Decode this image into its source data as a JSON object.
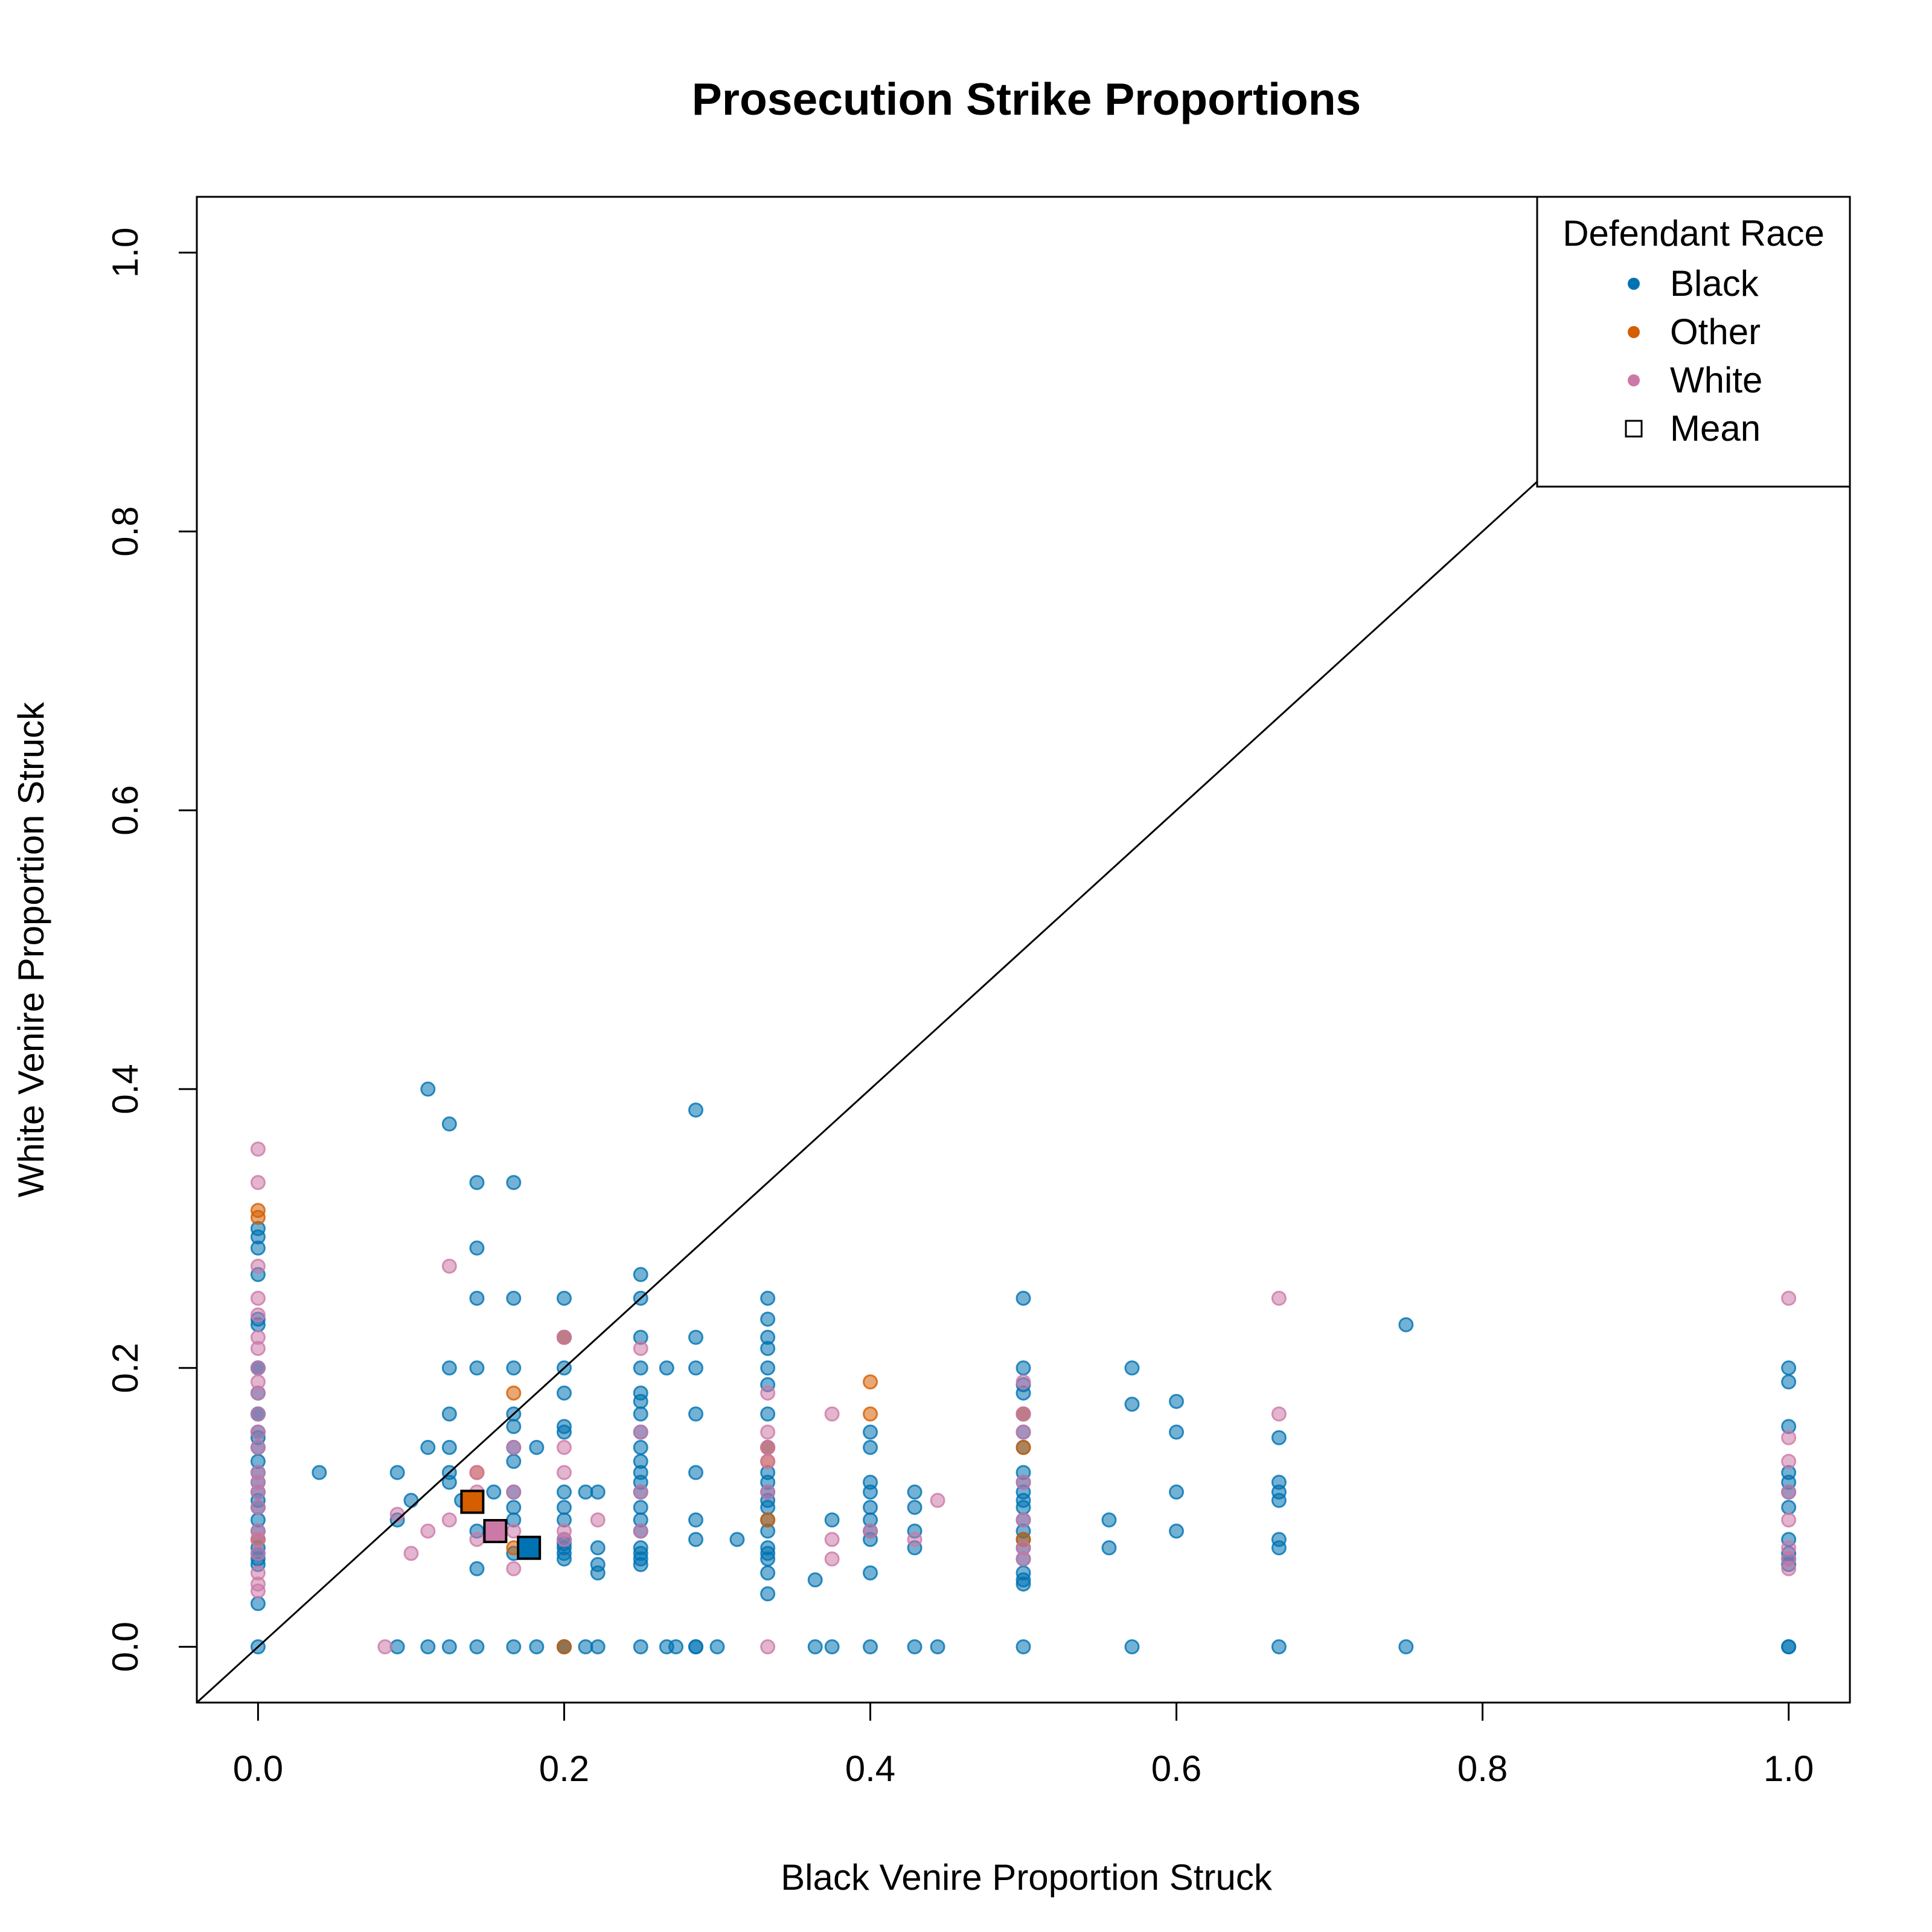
{
  "chart_data": {
    "type": "scatter",
    "title": "Prosecution Strike Proportions",
    "xlabel": "Black Venire Proportion Struck",
    "ylabel": "White Venire Proportion Struck",
    "xlim": [
      -0.04,
      1.04
    ],
    "ylim": [
      -0.04,
      1.04
    ],
    "xticks": [
      "0.0",
      "0.2",
      "0.4",
      "0.6",
      "0.8",
      "1.0"
    ],
    "yticks": [
      "0.0",
      "0.2",
      "0.4",
      "0.6",
      "0.8",
      "1.0"
    ],
    "reference_line": "y = x",
    "legend": {
      "title": "Defendant Race",
      "placement": "top-right",
      "entries": [
        "Black",
        "Other",
        "White",
        "Mean"
      ]
    },
    "colors": {
      "Black": "#0072B2",
      "Other": "#D55E00",
      "White": "#CC79A7"
    },
    "series": [
      {
        "name": "Black",
        "x": [
          0,
          0,
          0,
          0,
          0,
          0,
          0,
          0,
          0,
          0,
          0,
          0,
          0,
          0,
          0,
          0,
          0,
          0,
          0,
          0,
          0,
          0,
          0,
          0,
          0,
          0,
          0,
          0,
          0,
          0.04,
          0.091,
          0.091,
          0.091,
          0.1,
          0.111,
          0.111,
          0.111,
          0.125,
          0.125,
          0.125,
          0.125,
          0.125,
          0.125,
          0.125,
          0.133,
          0.143,
          0.143,
          0.143,
          0.143,
          0.143,
          0.143,
          0.143,
          0.154,
          0.167,
          0.167,
          0.167,
          0.167,
          0.167,
          0.167,
          0.167,
          0.167,
          0.167,
          0.167,
          0.167,
          0.167,
          0.182,
          0.182,
          0.2,
          0.2,
          0.2,
          0.2,
          0.2,
          0.2,
          0.2,
          0.2,
          0.2,
          0.2,
          0.2,
          0.2,
          0.2,
          0.2,
          0.2,
          0.2,
          0.214,
          0.214,
          0.222,
          0.222,
          0.222,
          0.222,
          0.222,
          0.25,
          0.25,
          0.25,
          0.25,
          0.25,
          0.25,
          0.25,
          0.25,
          0.25,
          0.25,
          0.25,
          0.25,
          0.25,
          0.25,
          0.25,
          0.25,
          0.25,
          0.25,
          0.25,
          0.25,
          0.25,
          0.267,
          0.267,
          0.273,
          0.286,
          0.286,
          0.286,
          0.286,
          0.286,
          0.286,
          0.286,
          0.286,
          0.286,
          0.3,
          0.313,
          0.333,
          0.333,
          0.333,
          0.333,
          0.333,
          0.333,
          0.333,
          0.333,
          0.333,
          0.333,
          0.333,
          0.333,
          0.333,
          0.333,
          0.333,
          0.333,
          0.333,
          0.333,
          0.333,
          0.333,
          0.364,
          0.364,
          0.375,
          0.375,
          0.4,
          0.4,
          0.4,
          0.4,
          0.4,
          0.4,
          0.4,
          0.4,
          0.4,
          0.4,
          0.429,
          0.429,
          0.429,
          0.429,
          0.429,
          0.444,
          0.5,
          0.5,
          0.5,
          0.5,
          0.5,
          0.5,
          0.5,
          0.5,
          0.5,
          0.5,
          0.5,
          0.5,
          0.5,
          0.5,
          0.5,
          0.5,
          0.5,
          0.5,
          0.5,
          0.5,
          0.5,
          0.556,
          0.556,
          0.571,
          0.571,
          0.571,
          0.6,
          0.6,
          0.6,
          0.6,
          0.667,
          0.667,
          0.667,
          0.667,
          0.667,
          0.667,
          0.667,
          0.75,
          0.75,
          1,
          1,
          1,
          1,
          1,
          1,
          1,
          1,
          1,
          1,
          1,
          1,
          1
        ],
        "y": [
          0.3,
          0.294,
          0.286,
          0.267,
          0.235,
          0.231,
          0.2,
          0.2,
          0.182,
          0.167,
          0.167,
          0.154,
          0.15,
          0.143,
          0.133,
          0.125,
          0.118,
          0.111,
          0.105,
          0.1,
          0.091,
          0.083,
          0.077,
          0.071,
          0.067,
          0.063,
          0.059,
          0.031,
          0,
          0.125,
          0.125,
          0.091,
          0,
          0.105,
          0.4,
          0.143,
          0,
          0.375,
          0.2,
          0.167,
          0.143,
          0.125,
          0.118,
          0,
          0.105,
          0.333,
          0.286,
          0.25,
          0.2,
          0.083,
          0.056,
          0,
          0.111,
          0.333,
          0.25,
          0.2,
          0.167,
          0.158,
          0.143,
          0.133,
          0.111,
          0.1,
          0.091,
          0.067,
          0,
          0.143,
          0,
          0.25,
          0.222,
          0.2,
          0.182,
          0.158,
          0.154,
          0.111,
          0.1,
          0.091,
          0.077,
          0.074,
          0.071,
          0.067,
          0.063,
          0,
          0,
          0.111,
          0,
          0.111,
          0.071,
          0.059,
          0.053,
          0,
          0.267,
          0.25,
          0.222,
          0.2,
          0.182,
          0.176,
          0.167,
          0.154,
          0.143,
          0.133,
          0.125,
          0.118,
          0.111,
          0.1,
          0.091,
          0.083,
          0.071,
          0.067,
          0.063,
          0.059,
          0,
          0.2,
          0,
          0,
          0.385,
          0.222,
          0.2,
          0.167,
          0.125,
          0.091,
          0.077,
          0,
          0,
          0,
          0.077,
          0.25,
          0.235,
          0.222,
          0.214,
          0.2,
          0.188,
          0.167,
          0.143,
          0.125,
          0.118,
          0.111,
          0.105,
          0.1,
          0.091,
          0.083,
          0.071,
          0.067,
          0.063,
          0.053,
          0.038,
          0.048,
          0,
          0.091,
          0,
          0.154,
          0.143,
          0.118,
          0.111,
          0.1,
          0.091,
          0.083,
          0.077,
          0.053,
          0,
          0.111,
          0.1,
          0.083,
          0.071,
          0,
          0,
          0.25,
          0.2,
          0.188,
          0.182,
          0.167,
          0.154,
          0.143,
          0.125,
          0.118,
          0.111,
          0.105,
          0.1,
          0.091,
          0.083,
          0.077,
          0.071,
          0.063,
          0.053,
          0.048,
          0.045,
          0,
          0.091,
          0.071,
          0.2,
          0.174,
          0,
          0.176,
          0.154,
          0.111,
          0.083,
          0.15,
          0.118,
          0.111,
          0.105,
          0.077,
          0.071,
          0,
          0.231,
          0,
          0.2,
          0.19,
          0.158,
          0.125,
          0.118,
          0.111,
          0.1,
          0.077,
          0.067,
          0.063,
          0.059,
          0,
          0
        ]
      },
      {
        "name": "Other",
        "x": [
          0,
          0,
          0,
          0.143,
          0.167,
          0.167,
          0.2,
          0.2,
          0.333,
          0.333,
          0.333,
          0.4,
          0.4,
          0.5,
          0.5,
          0.5
        ],
        "y": [
          0.313,
          0.308,
          0.077,
          0.125,
          0.182,
          0.071,
          0,
          0.222,
          0.143,
          0.133,
          0.091,
          0.19,
          0.167,
          0.167,
          0.143,
          0.077
        ]
      },
      {
        "name": "White",
        "x": [
          0,
          0,
          0,
          0,
          0,
          0,
          0,
          0,
          0,
          0,
          0,
          0,
          0,
          0,
          0,
          0,
          0,
          0,
          0,
          0,
          0,
          0,
          0,
          0.083,
          0.091,
          0.1,
          0.111,
          0.125,
          0.125,
          0.143,
          0.143,
          0.143,
          0.167,
          0.167,
          0.167,
          0.167,
          0.2,
          0.2,
          0.2,
          0.2,
          0.2,
          0.222,
          0.25,
          0.25,
          0.25,
          0.25,
          0.333,
          0.333,
          0.333,
          0.333,
          0.333,
          0.333,
          0.375,
          0.375,
          0.375,
          0.4,
          0.429,
          0.444,
          0.5,
          0.5,
          0.5,
          0.5,
          0.5,
          0.5,
          0.5,
          0.667,
          0.667,
          1,
          1,
          1,
          1,
          1,
          1,
          1,
          1
        ],
        "y": [
          0.357,
          0.333,
          0.273,
          0.25,
          0.238,
          0.222,
          0.214,
          0.2,
          0.19,
          0.182,
          0.167,
          0.154,
          0.143,
          0.125,
          0.118,
          0.111,
          0.1,
          0.083,
          0.077,
          0.067,
          0.053,
          0.045,
          0.04,
          0,
          0.095,
          0.067,
          0.083,
          0.273,
          0.091,
          0.125,
          0.111,
          0.077,
          0.143,
          0.111,
          0.083,
          0.056,
          0.222,
          0.143,
          0.125,
          0.083,
          0.077,
          0.091,
          0.214,
          0.154,
          0.111,
          0.083,
          0.182,
          0.154,
          0.143,
          0.133,
          0.111,
          0,
          0.167,
          0.077,
          0.063,
          0.083,
          0.077,
          0.105,
          0.19,
          0.167,
          0.154,
          0.118,
          0.091,
          0.071,
          0.063,
          0.25,
          0.167,
          0.25,
          0.15,
          0.133,
          0.111,
          0.091,
          0.071,
          0.063,
          0.056
        ]
      }
    ],
    "means": [
      {
        "name": "Other",
        "x": 0.14,
        "y": 0.104
      },
      {
        "name": "White",
        "x": 0.155,
        "y": 0.083
      },
      {
        "name": "Black",
        "x": 0.177,
        "y": 0.071
      }
    ]
  }
}
